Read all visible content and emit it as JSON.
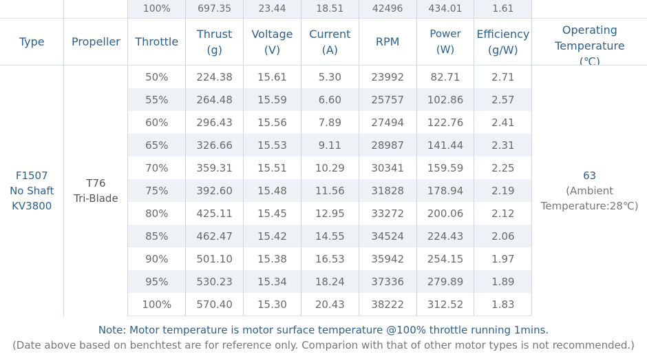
{
  "prev_row": [
    "100%",
    "697.35",
    "23.44",
    "18.51",
    "42496",
    "434.01",
    "1.61"
  ],
  "headers": {
    "type": "Type",
    "propeller": "Propeller",
    "throttle": "Throttle",
    "thrust": [
      "Thrust",
      "(g)"
    ],
    "voltage": [
      "Voltage",
      "(V)"
    ],
    "current": [
      "Current",
      "(A)"
    ],
    "rpm": "RPM",
    "power": [
      "Power",
      "(W)"
    ],
    "efficiency": [
      "Efficiency",
      "(g/W)"
    ],
    "temperature": [
      "Operating",
      "Temperature",
      "(℃)"
    ]
  },
  "motor": [
    "F1507",
    "No Shaft",
    "KV3800"
  ],
  "propeller": [
    "T76",
    "Tri-Blade"
  ],
  "rows": [
    [
      "50%",
      "224.38",
      "15.61",
      "5.30",
      "23992",
      "82.71",
      "2.71"
    ],
    [
      "55%",
      "264.48",
      "15.59",
      "6.60",
      "25757",
      "102.86",
      "2.57"
    ],
    [
      "60%",
      "296.43",
      "15.56",
      "7.89",
      "27494",
      "122.76",
      "2.41"
    ],
    [
      "65%",
      "326.66",
      "15.53",
      "9.11",
      "28987",
      "141.44",
      "2.31"
    ],
    [
      "70%",
      "359.31",
      "15.51",
      "10.29",
      "30341",
      "159.59",
      "2.25"
    ],
    [
      "75%",
      "392.60",
      "15.48",
      "11.56",
      "31828",
      "178.94",
      "2.19"
    ],
    [
      "80%",
      "425.11",
      "15.45",
      "12.95",
      "33272",
      "200.06",
      "2.12"
    ],
    [
      "85%",
      "462.47",
      "15.42",
      "14.55",
      "34524",
      "224.43",
      "2.06"
    ],
    [
      "90%",
      "501.10",
      "15.38",
      "16.53",
      "35942",
      "254.15",
      "1.97"
    ],
    [
      "95%",
      "530.23",
      "15.34",
      "18.24",
      "37336",
      "279.89",
      "1.89"
    ],
    [
      "100%",
      "570.40",
      "15.30",
      "20.43",
      "38222",
      "312.52",
      "1.83"
    ]
  ],
  "operating_temperature": {
    "value": "63",
    "note": [
      "(Ambient",
      "Temperature:28℃)"
    ]
  },
  "notes": {
    "line1": "Note: Motor temperature is motor surface temperature @100% throttle running 1mins.",
    "line2": "(Date above based on benchtest are for reference only. Comparion with that of other motor types is not recommended.)"
  }
}
